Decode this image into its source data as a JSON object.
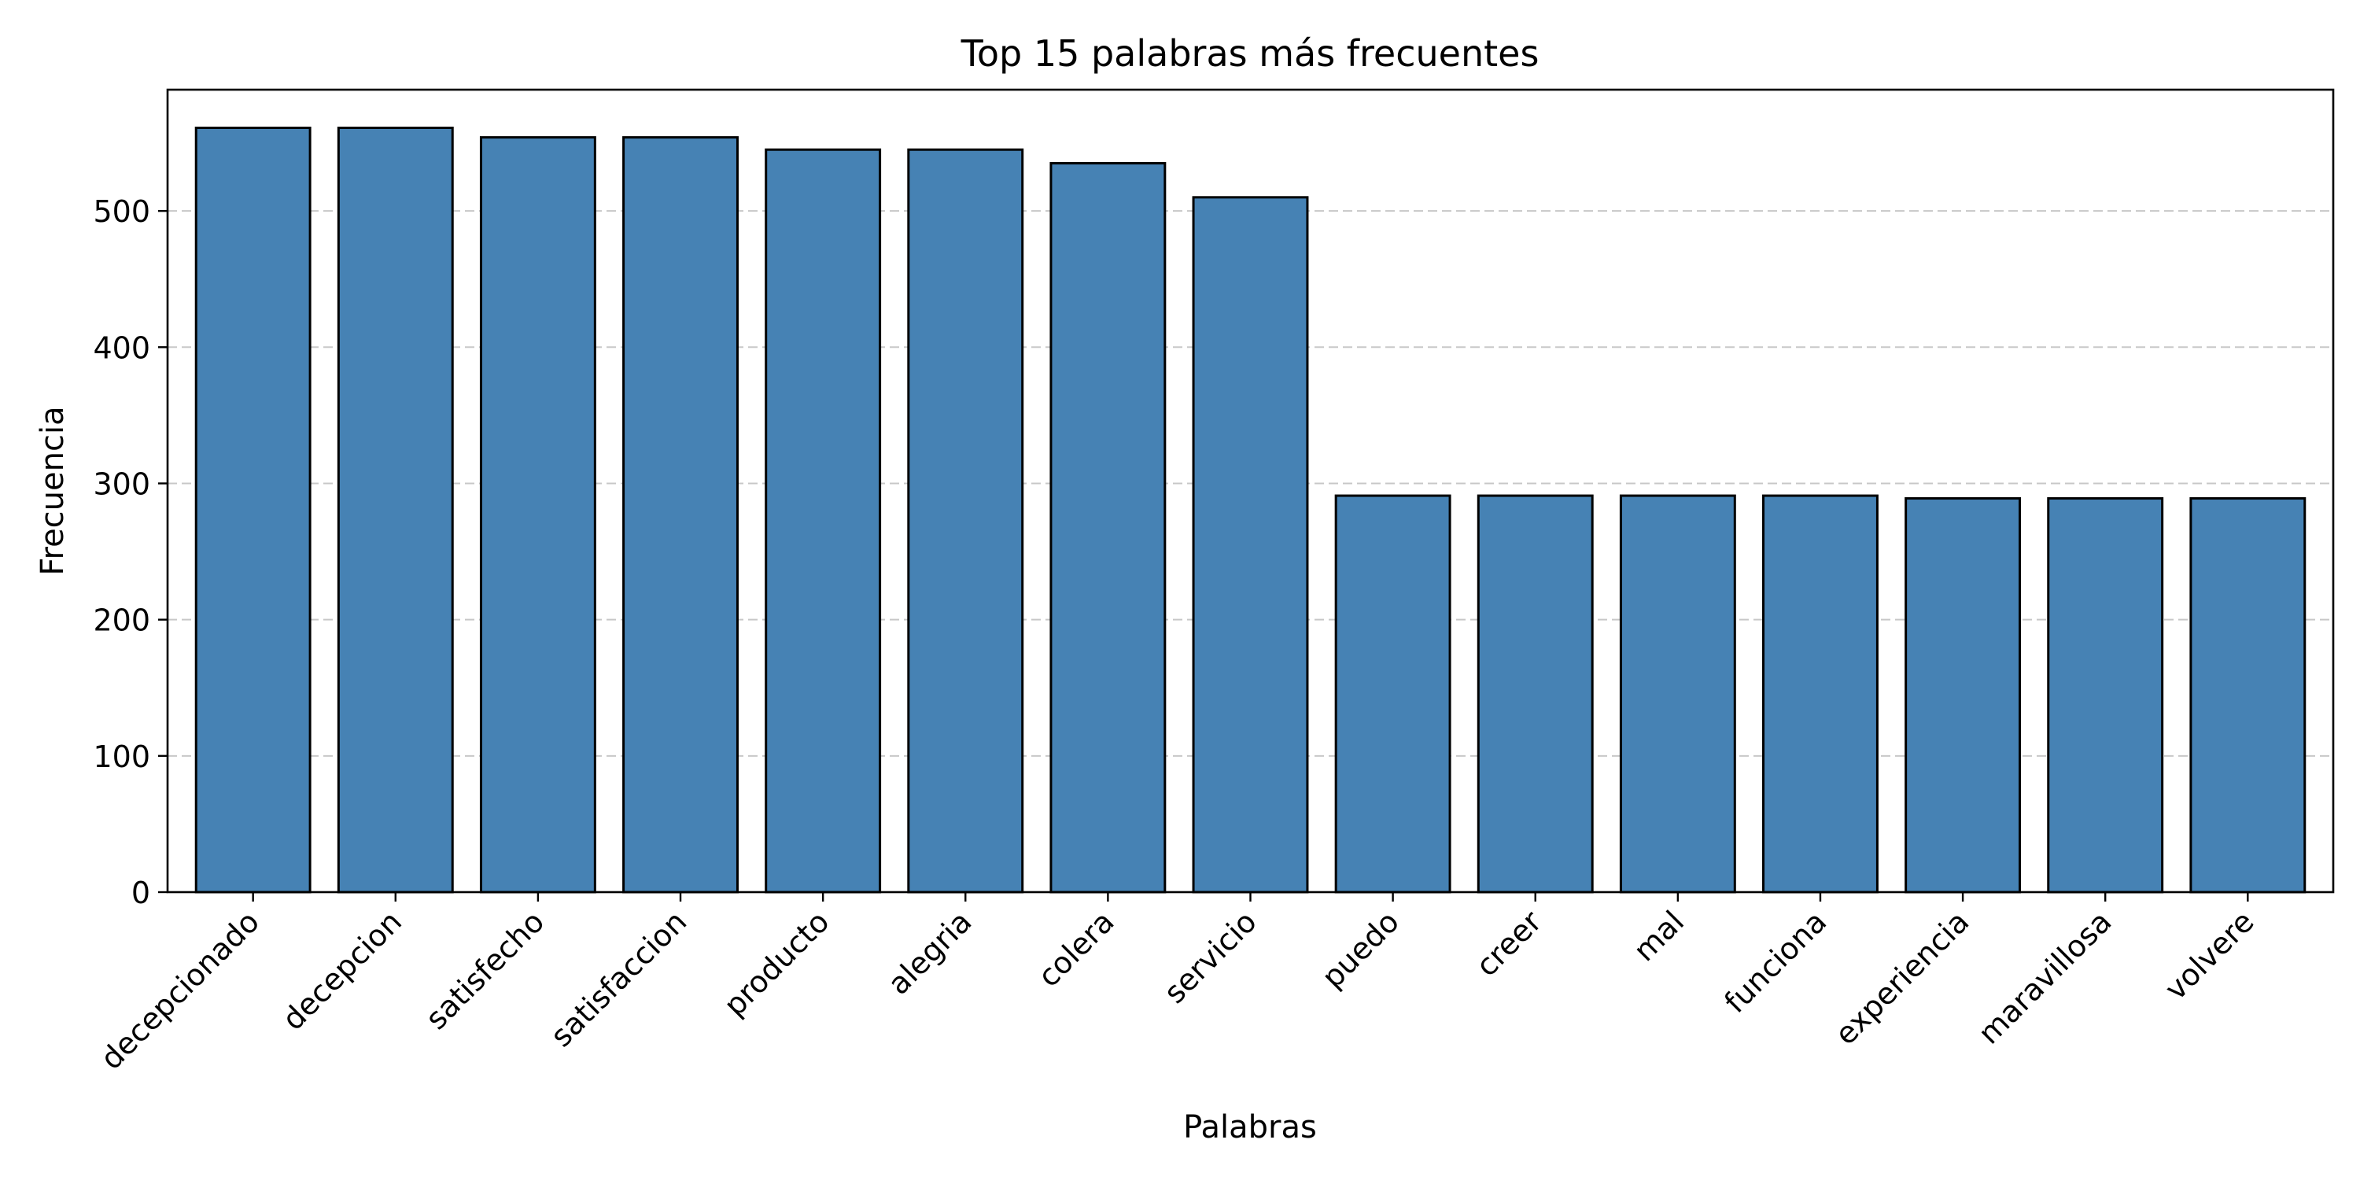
{
  "chart_data": {
    "type": "bar",
    "title": "Top 15 palabras más frecuentes",
    "xlabel": "Palabras",
    "ylabel": "Frecuencia",
    "categories": [
      "decepcionado",
      "decepcion",
      "satisfecho",
      "satisfaccion",
      "producto",
      "alegria",
      "colera",
      "servicio",
      "puedo",
      "creer",
      "mal",
      "funciona",
      "experiencia",
      "maravillosa",
      "volvere"
    ],
    "values": [
      561,
      561,
      554,
      554,
      545,
      545,
      535,
      510,
      291,
      291,
      291,
      291,
      289,
      289,
      289
    ],
    "ylim": [
      0,
      589
    ],
    "yticks": [
      0,
      100,
      200,
      300,
      400,
      500
    ],
    "grid": "y-dashed",
    "bar_color": "#4682b4",
    "bar_edge_color": "#000000"
  }
}
